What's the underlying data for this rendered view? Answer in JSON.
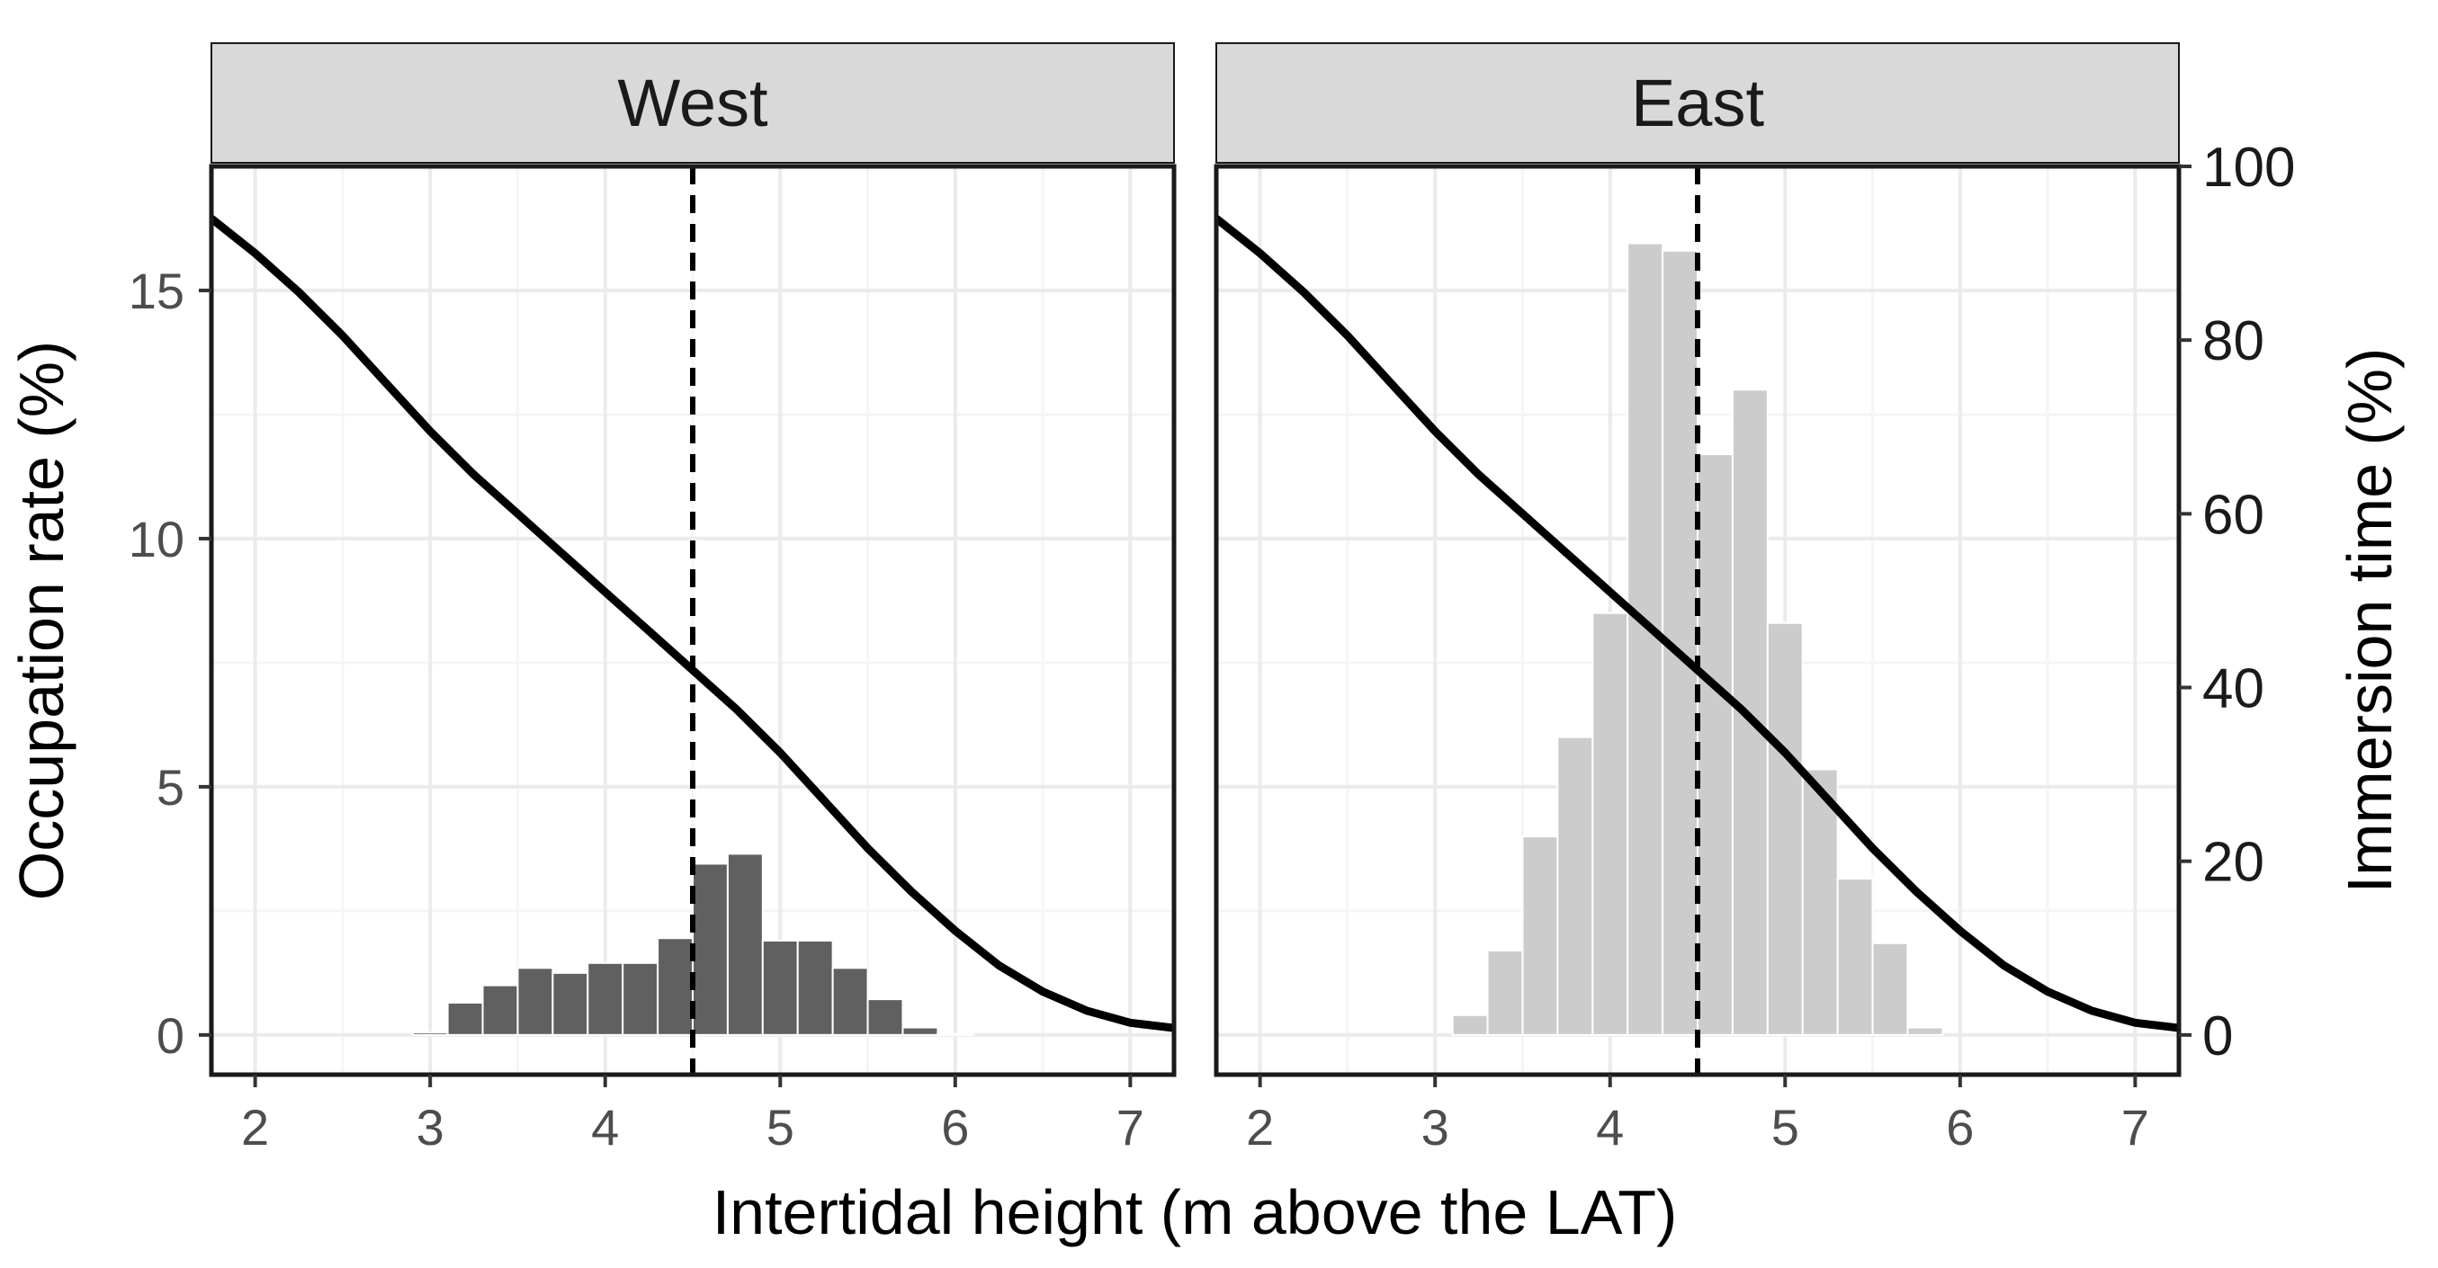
{
  "chart_data": {
    "type": "histogram+line",
    "xlabel": "Intertidal height (m above the LAT)",
    "ylabel_left": "Occupation rate (%)",
    "ylabel_right": "Immersion time (%)",
    "xlim": [
      1.75,
      7.25
    ],
    "ylim_left": [
      -0.8,
      17.5
    ],
    "ylim_right": [
      -4.57,
      100
    ],
    "x_ticks": [
      2,
      3,
      4,
      5,
      6,
      7
    ],
    "y_ticks_left": [
      0,
      5,
      10,
      15
    ],
    "y_ticks_right": [
      0,
      20,
      40,
      60,
      80,
      100
    ],
    "threshold_x": 4.5,
    "bin_width": 0.2,
    "colors": {
      "west_bars": "#606060",
      "east_bars": "#cccccc",
      "line": "#000000",
      "strip": "#d9d9d9",
      "grid_major": "#ebebeb",
      "grid_minor": "#f5f5f5",
      "panel_border": "#1a1a1a"
    },
    "immersion_curve": {
      "x": [
        1.75,
        2.0,
        2.25,
        2.5,
        2.75,
        3.0,
        3.25,
        3.5,
        3.75,
        4.0,
        4.25,
        4.5,
        4.75,
        5.0,
        5.25,
        5.5,
        5.75,
        6.0,
        6.25,
        6.5,
        6.75,
        7.0,
        7.25
      ],
      "y": [
        94,
        90,
        85.5,
        80.5,
        75,
        69.5,
        64.5,
        60,
        55.5,
        51,
        46.5,
        42,
        37.5,
        32.5,
        27,
        21.5,
        16.5,
        12,
        8,
        5,
        2.8,
        1.4,
        0.8
      ]
    },
    "panels": [
      {
        "name": "West",
        "bars": {
          "x": [
            3.0,
            3.2,
            3.4,
            3.6,
            3.8,
            4.0,
            4.2,
            4.4,
            4.6,
            4.8,
            5.0,
            5.2,
            5.4,
            5.6,
            5.8,
            6.0
          ],
          "values": [
            0.05,
            0.65,
            1.0,
            1.35,
            1.25,
            1.45,
            1.45,
            1.95,
            3.45,
            3.65,
            1.9,
            1.9,
            1.35,
            0.72,
            0.15,
            0.02
          ]
        }
      },
      {
        "name": "East",
        "bars": {
          "x": [
            3.2,
            3.4,
            3.6,
            3.8,
            4.0,
            4.2,
            4.4,
            4.6,
            4.8,
            5.0,
            5.2,
            5.4,
            5.6,
            5.8
          ],
          "values": [
            0.4,
            1.7,
            4.0,
            6.0,
            8.5,
            15.95,
            15.8,
            11.7,
            13.0,
            8.3,
            5.35,
            3.15,
            1.85,
            0.15
          ]
        }
      }
    ]
  }
}
